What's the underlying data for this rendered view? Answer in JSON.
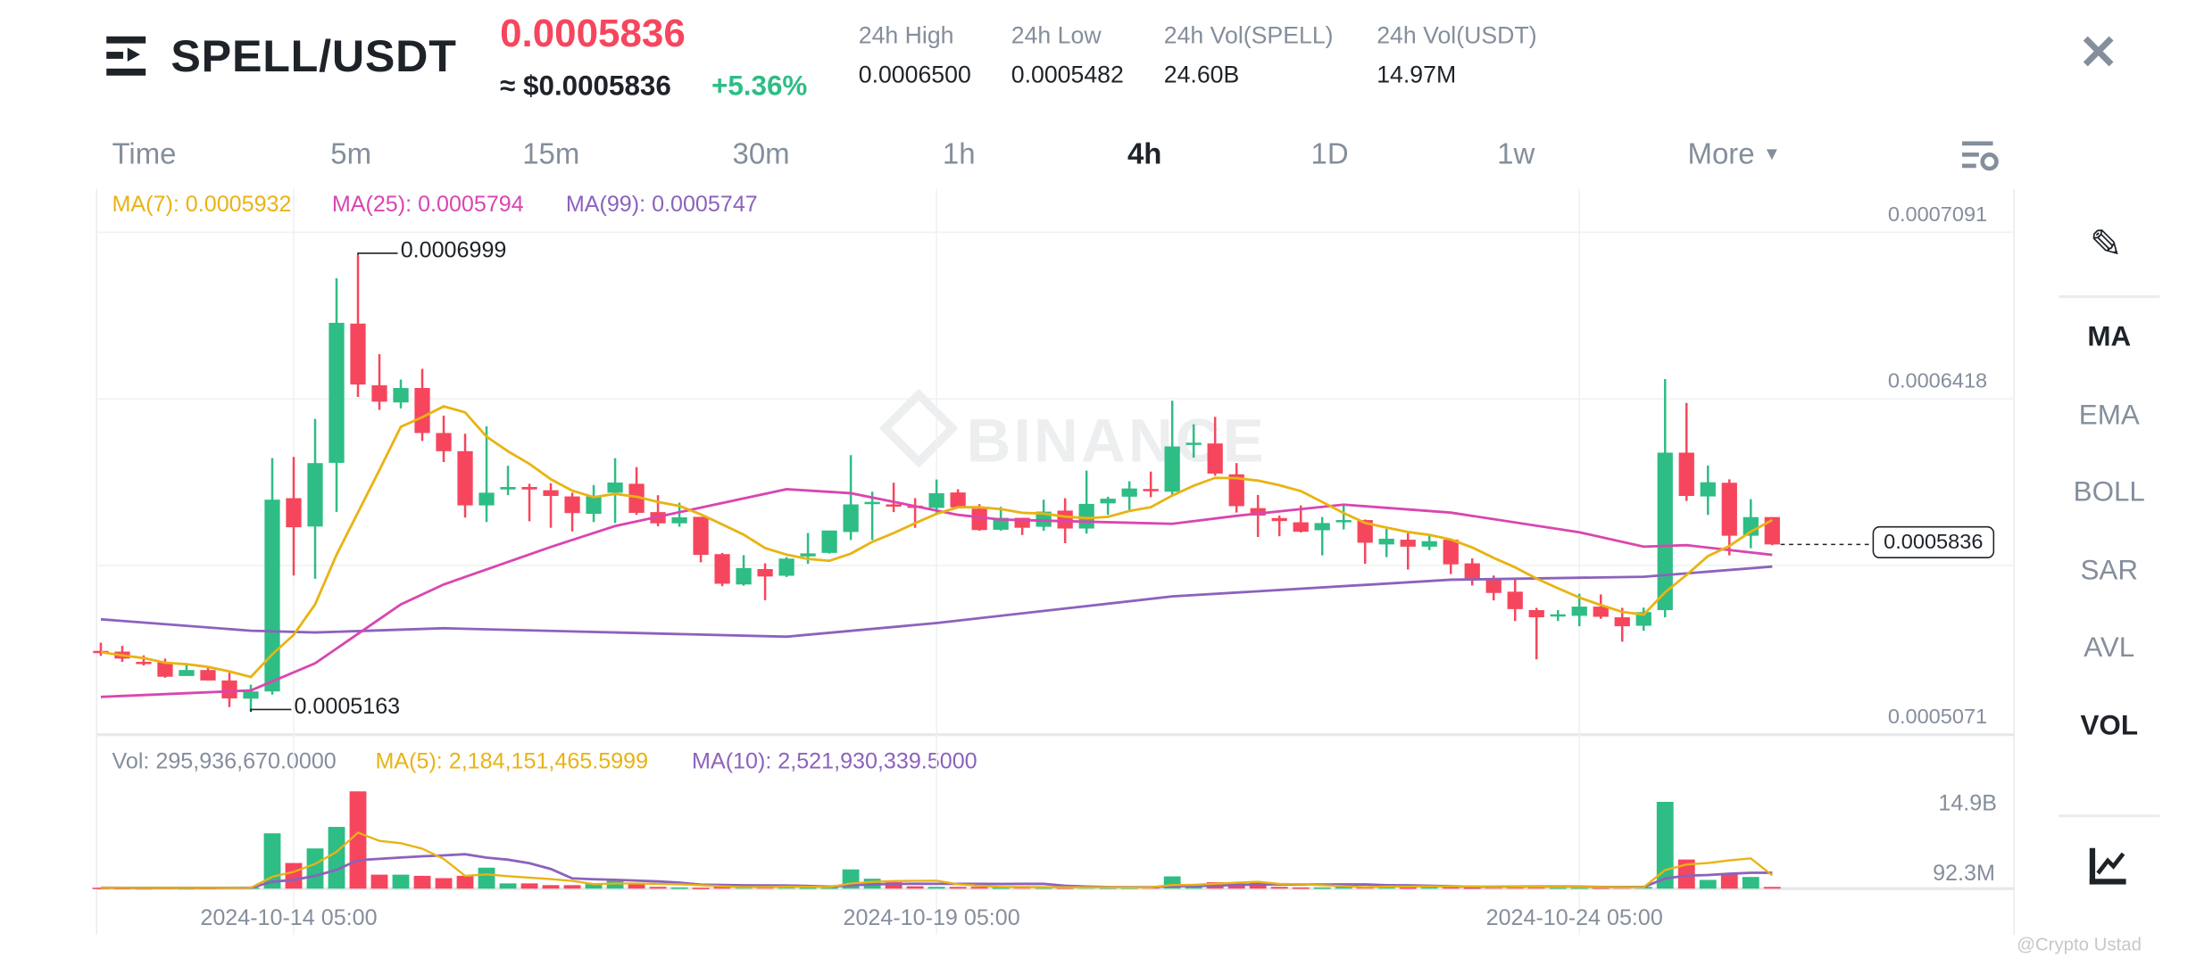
{
  "header": {
    "menu_icon": "menu-arrow-icon",
    "pair": "SPELL/USDT",
    "price": "0.0005836",
    "price_usd": "≈ $0.0005836",
    "change": "+5.36%",
    "stats": [
      {
        "label": "24h High",
        "value": "0.0006500"
      },
      {
        "label": "24h Low",
        "value": "0.0005482"
      },
      {
        "label": "24h Vol(SPELL)",
        "value": "24.60B"
      },
      {
        "label": "24h Vol(USDT)",
        "value": "14.97M"
      }
    ],
    "close_icon": "close-icon"
  },
  "timeframes": [
    "Time",
    "5m",
    "15m",
    "30m",
    "1h",
    "4h",
    "1D",
    "1w",
    "More"
  ],
  "active_timeframe": "4h",
  "indicators": [
    "MA",
    "EMA",
    "BOLL",
    "SAR",
    "AVL",
    "VOL"
  ],
  "active_indicators": [
    "MA",
    "VOL"
  ],
  "legend": {
    "ma7": "MA(7): 0.0005932",
    "ma25": "MA(25): 0.0005794",
    "ma99": "MA(99): 0.0005747",
    "vol": "Vol: 295,936,670.0000",
    "vol_ma5": "MA(5): 2,184,151,465.5999",
    "vol_ma10": "MA(10): 2,521,930,339.5000"
  },
  "price_axis": [
    "0.0007091",
    "0.0006418",
    "0.0005071"
  ],
  "current_price_tag": "0.0005836",
  "volume_axis": [
    "14.9B",
    "92.3M"
  ],
  "watermark": "BINANCE",
  "credit": "@Crypto Ustad",
  "colors": {
    "up": "#2EBD85",
    "down": "#F6465D",
    "ma7": "#E9B313",
    "ma25": "#D946B0",
    "ma99": "#8C62BD",
    "price": "#F6465D",
    "change": "#2EBD85"
  },
  "chart_data": {
    "type": "candlestick",
    "interval": "4h",
    "x_ticks": [
      {
        "label": "2024-10-14 05:00",
        "index": 9
      },
      {
        "label": "2024-10-19 05:00",
        "index": 39
      },
      {
        "label": "2024-10-24 05:00",
        "index": 69
      }
    ],
    "ylim": [
      0.0005071,
      0.0007091
    ],
    "annotations": [
      {
        "label": "0.0006999",
        "index": 12,
        "type": "high"
      },
      {
        "label": "0.0005163",
        "index": 7,
        "type": "low"
      }
    ],
    "ohlc": [
      [
        0.0005408,
        0.0005441,
        0.0005388,
        0.0005403
      ],
      [
        0.0005405,
        0.0005428,
        0.0005364,
        0.0005377
      ],
      [
        0.0005364,
        0.000539,
        0.0005349,
        0.0005357
      ],
      [
        0.0005362,
        0.0005377,
        0.00053,
        0.0005304
      ],
      [
        0.0005307,
        0.0005358,
        0.0005307,
        0.0005331
      ],
      [
        0.0005331,
        0.0005345,
        0.0005289,
        0.0005289
      ],
      [
        0.0005289,
        0.000532,
        0.0005182,
        0.0005217
      ],
      [
        0.0005216,
        0.0005272,
        0.0005163,
        0.0005245
      ],
      [
        0.0005245,
        0.0006183,
        0.0005232,
        0.0006016
      ],
      [
        0.0006022,
        0.0006188,
        0.0005711,
        0.0005905
      ],
      [
        0.0005908,
        0.0006341,
        0.0005698,
        0.0006163
      ],
      [
        0.0006164,
        0.0006906,
        0.0005967,
        0.0006727
      ],
      [
        0.0006724,
        0.0006999,
        0.0006429,
        0.0006479
      ],
      [
        0.0006476,
        0.0006601,
        0.0006377,
        0.000641
      ],
      [
        0.0006407,
        0.0006499,
        0.0006383,
        0.0006465
      ],
      [
        0.0006465,
        0.0006542,
        0.0006252,
        0.0006284
      ],
      [
        0.0006284,
        0.0006354,
        0.0006167,
        0.0006211
      ],
      [
        0.0006211,
        0.0006281,
        0.0005944,
        0.0005993
      ],
      [
        0.0005993,
        0.0006311,
        0.0005926,
        0.0006044
      ],
      [
        0.0006057,
        0.0006152,
        0.0006034,
        0.0006067
      ],
      [
        0.0006067,
        0.000608,
        0.0005929,
        0.0006057
      ],
      [
        0.0006054,
        0.0006082,
        0.0005903,
        0.0006031
      ],
      [
        0.0006029,
        0.0006044,
        0.0005888,
        0.0005962
      ],
      [
        0.0005959,
        0.0006075,
        0.0005926,
        0.0006029
      ],
      [
        0.0006044,
        0.0006183,
        0.0005922,
        0.0006085
      ],
      [
        0.000608,
        0.0006147,
        0.0005955,
        0.0005963
      ],
      [
        0.0005966,
        0.0006034,
        0.0005909,
        0.0005921
      ],
      [
        0.0005921,
        0.0006004,
        0.0005907,
        0.0005945
      ],
      [
        0.0005947,
        0.0005947,
        0.0005764,
        0.0005794
      ],
      [
        0.0005797,
        0.0005802,
        0.0005668,
        0.0005678
      ],
      [
        0.0005675,
        0.0005793,
        0.000567,
        0.0005741
      ],
      [
        0.0005737,
        0.000576,
        0.0005612,
        0.0005707
      ],
      [
        0.000571,
        0.0005785,
        0.0005705,
        0.0005779
      ],
      [
        0.0005788,
        0.0005882,
        0.0005758,
        0.00058
      ],
      [
        0.0005802,
        0.0005892,
        0.0005799,
        0.0005892
      ],
      [
        0.0005886,
        0.0006195,
        0.0005854,
        0.0005997
      ],
      [
        0.0006002,
        0.0006048,
        0.0005854,
        0.0006007
      ],
      [
        0.0005997,
        0.0006084,
        0.0005966,
        0.000599
      ],
      [
        0.0005992,
        0.0006022,
        0.0005903,
        0.0005985
      ],
      [
        0.0005983,
        0.0006097,
        0.0005963,
        0.0006042
      ],
      [
        0.0006045,
        0.0006058,
        0.0005983,
        0.0005985
      ],
      [
        0.000598,
        0.0005998,
        0.0005891,
        0.0005894
      ],
      [
        0.0005895,
        0.0005987,
        0.0005891,
        0.0005943
      ],
      [
        0.0005943,
        0.0005943,
        0.0005874,
        0.0005903
      ],
      [
        0.0005907,
        0.0006016,
        0.0005891,
        0.0005968
      ],
      [
        0.0005972,
        0.0006022,
        0.0005841,
        0.00059
      ],
      [
        0.00059,
        0.0006133,
        0.000588,
        0.0005999
      ],
      [
        0.0006001,
        0.0006028,
        0.0005955,
        0.000602
      ],
      [
        0.0006028,
        0.000609,
        0.0005975,
        0.0006061
      ],
      [
        0.0006059,
        0.0006129,
        0.0006026,
        0.000605
      ],
      [
        0.0006048,
        0.0006414,
        0.0006034,
        0.000623
      ],
      [
        0.000624,
        0.0006319,
        0.0006185,
        0.0006245
      ],
      [
        0.0006242,
        0.0006349,
        0.0006112,
        0.0006121
      ],
      [
        0.0006118,
        0.0006163,
        0.0005964,
        0.000599
      ],
      [
        0.0005982,
        0.0006035,
        0.0005866,
        0.0005952
      ],
      [
        0.0005942,
        0.0005952,
        0.0005869,
        0.000593
      ],
      [
        0.0005925,
        0.0005993,
        0.0005884,
        0.0005887
      ],
      [
        0.0005893,
        0.0005946,
        0.0005792,
        0.0005922
      ],
      [
        0.0005925,
        0.0005993,
        0.0005896,
        0.0005934
      ],
      [
        0.0005934,
        0.0005936,
        0.0005758,
        0.0005843
      ],
      [
        0.0005836,
        0.0005898,
        0.0005785,
        0.0005859
      ],
      [
        0.0005855,
        0.0005881,
        0.0005735,
        0.0005827
      ],
      [
        0.0005827,
        0.0005875,
        0.0005813,
        0.0005849
      ],
      [
        0.0005855,
        0.0005857,
        0.0005717,
        0.0005756
      ],
      [
        0.000576,
        0.000578,
        0.0005671,
        0.0005699
      ],
      [
        0.0005694,
        0.0005711,
        0.0005611,
        0.0005641
      ],
      [
        0.0005646,
        0.0005697,
        0.0005528,
        0.0005576
      ],
      [
        0.0005572,
        0.0005581,
        0.0005374,
        0.0005543
      ],
      [
        0.0005547,
        0.0005572,
        0.0005528,
        0.0005555
      ],
      [
        0.0005549,
        0.0005638,
        0.0005507,
        0.0005586
      ],
      [
        0.0005586,
        0.0005635,
        0.0005537,
        0.0005545
      ],
      [
        0.0005543,
        0.0005581,
        0.0005445,
        0.0005507
      ],
      [
        0.0005509,
        0.0005582,
        0.0005489,
        0.0005564
      ],
      [
        0.0005572,
        0.0006501,
        0.0005543,
        0.0006205
      ],
      [
        0.0006205,
        0.0006405,
        0.0006011,
        0.0006031
      ],
      [
        0.0006029,
        0.0006153,
        0.0005955,
        0.0006086
      ],
      [
        0.0006084,
        0.0006098,
        0.0005792,
        0.0005871
      ],
      [
        0.0005871,
        0.0006018,
        0.0005821,
        0.0005946
      ],
      [
        0.0005946,
        0.0005946,
        0.0005833,
        0.0005836
      ]
    ],
    "volume": [
      150000000.0,
      120000000.0,
      100000000.0,
      150000000.0,
      100000000.0,
      120000000.0,
      200000000.0,
      200000000.0,
      9500000000.0,
      4400000000.0,
      6900000000.0,
      10600000000.0,
      16700000000.0,
      2400000000.0,
      2400000000.0,
      2200000000.0,
      1800000000.0,
      2200000000.0,
      3600000000.0,
      900000000.0,
      900000000.0,
      600000000.0,
      600000000.0,
      900000000.0,
      1400000000.0,
      900000000.0,
      300000000.0,
      200000000.0,
      150000000.0,
      400000000.0,
      300000000.0,
      300000000.0,
      400000000.0,
      200000000.0,
      200000000.0,
      3300000000.0,
      1700000000.0,
      1100000000.0,
      400000000.0,
      300000000.0,
      300000000.0,
      300000000.0,
      200000000.0,
      300000000.0,
      200000000.0,
      200000000.0,
      300000000.0,
      200000000.0,
      200000000.0,
      300000000.0,
      2100000000.0,
      500000000.0,
      1100000000.0,
      1100000000.0,
      1100000000.0,
      300000000.0,
      200000000.0,
      200000000.0,
      300000000.0,
      300000000.0,
      800000000.0,
      200000000.0,
      400000000.0,
      300000000.0,
      200000000.0,
      300000000.0,
      400000000.0,
      400000000.0,
      200000000.0,
      200000000.0,
      200000000.0,
      300000000.0,
      300000000.0,
      14900000000.0,
      5000000000.0,
      1500000000.0,
      2600000000.0,
      2000000000.0,
      295936670.0
    ],
    "volume_scale_max": 14900000000.0,
    "ma25_points": [
      [
        0,
        0.0005223
      ],
      [
        7,
        0.0005249
      ],
      [
        10,
        0.0005358
      ],
      [
        14,
        0.0005595
      ],
      [
        16,
        0.0005675
      ],
      [
        21,
        0.0005826
      ],
      [
        24,
        0.000591
      ],
      [
        32,
        0.0006058
      ],
      [
        35,
        0.0006042
      ],
      [
        40,
        0.0005955
      ],
      [
        42,
        0.0005936
      ],
      [
        50,
        0.0005919
      ],
      [
        53,
        0.0005951
      ],
      [
        58,
        0.0005996
      ],
      [
        63,
        0.0005964
      ],
      [
        69,
        0.0005885
      ],
      [
        72,
        0.0005827
      ],
      [
        74,
        0.0005833
      ],
      [
        78,
        0.0005794
      ]
    ],
    "ma99_points": [
      [
        0,
        0.0005535
      ],
      [
        7,
        0.0005489
      ],
      [
        10,
        0.0005482
      ],
      [
        16,
        0.0005499
      ],
      [
        24,
        0.0005482
      ],
      [
        32,
        0.0005465
      ],
      [
        39,
        0.000552
      ],
      [
        50,
        0.0005627
      ],
      [
        63,
        0.0005694
      ],
      [
        72,
        0.0005706
      ],
      [
        78,
        0.0005747
      ]
    ]
  }
}
